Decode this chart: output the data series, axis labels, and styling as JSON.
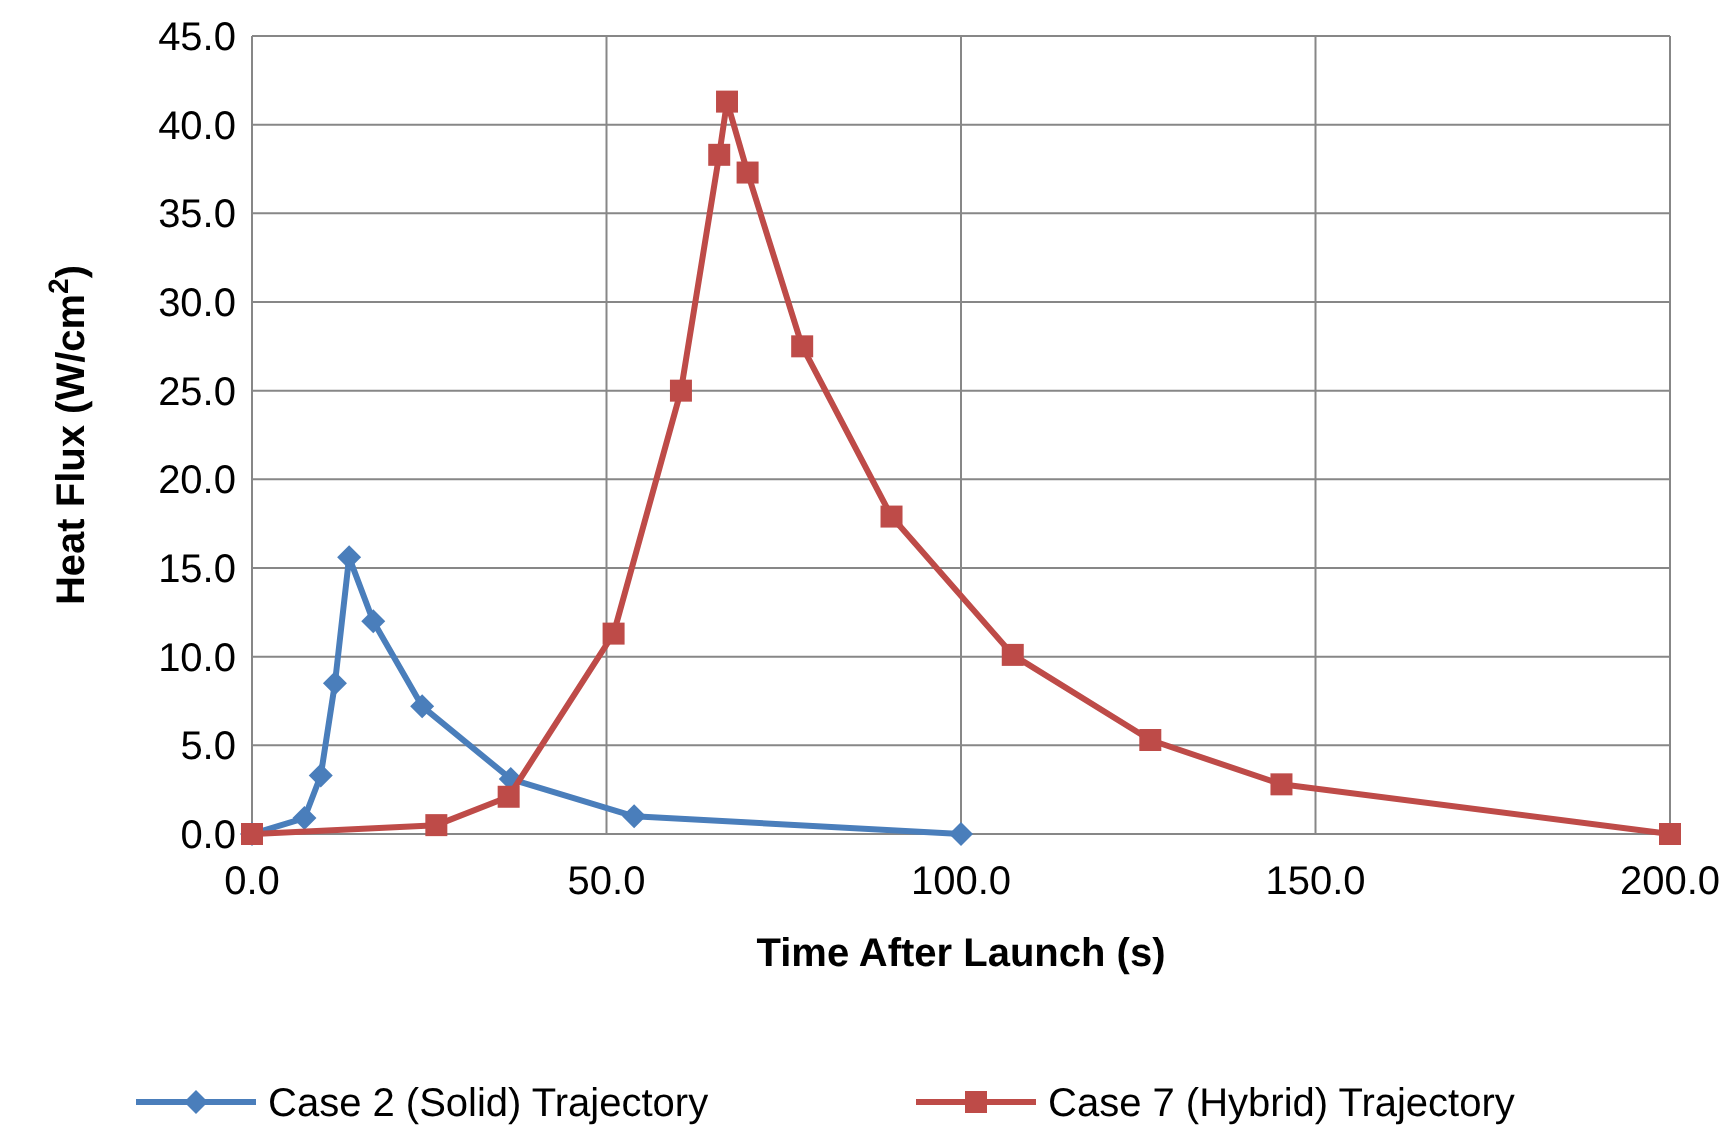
{
  "chart_data": {
    "type": "line",
    "xlabel": "Time After Launch (s)",
    "ylabel": "Heat Flux (W/cm$^{2}$)",
    "xlim": [
      0,
      200
    ],
    "xticks": [
      {
        "value": 0,
        "label": "0.0"
      },
      {
        "value": 50,
        "label": "50.0"
      },
      {
        "value": 100,
        "label": "100.0"
      },
      {
        "value": 150,
        "label": "150.0"
      },
      {
        "value": 200,
        "label": "200.0"
      }
    ],
    "ylim": [
      0,
      45
    ],
    "yticks": [
      {
        "value": 0,
        "label": "0.0"
      },
      {
        "value": 5,
        "label": "5.0"
      },
      {
        "value": 10,
        "label": "10.0"
      },
      {
        "value": 15,
        "label": "15.0"
      },
      {
        "value": 20,
        "label": "20.0"
      },
      {
        "value": 25,
        "label": "25.0"
      },
      {
        "value": 30,
        "label": "30.0"
      },
      {
        "value": 35,
        "label": "35.0"
      },
      {
        "value": 40,
        "label": "40.0"
      },
      {
        "value": 45,
        "label": "45.0"
      }
    ],
    "grid": true,
    "legend": "bottom",
    "line_style": "solid",
    "series": [
      {
        "name": "Case 2 (Solid) Trajectory",
        "color": "#4a7ebb",
        "marker": "diamond",
        "x": [
          0,
          7.4,
          9.7,
          11.7,
          13.7,
          17.1,
          24,
          36.5,
          53.9,
          100
        ],
        "values": [
          0,
          0.9,
          3.3,
          8.5,
          15.6,
          12.0,
          7.2,
          3.1,
          1.0,
          0
        ]
      },
      {
        "name": "Case 7 (Hybrid) Trajectory",
        "color": "#be4b48",
        "marker": "square",
        "x": [
          0,
          26,
          36.2,
          51,
          60.5,
          65.9,
          67,
          69.9,
          77.6,
          90.2,
          107.3,
          126.7,
          145.2,
          200
        ],
        "values": [
          0,
          0.5,
          2.1,
          11.3,
          25,
          38.3,
          41.3,
          37.3,
          27.5,
          17.9,
          10.1,
          5.3,
          2.8,
          0
        ]
      }
    ]
  }
}
